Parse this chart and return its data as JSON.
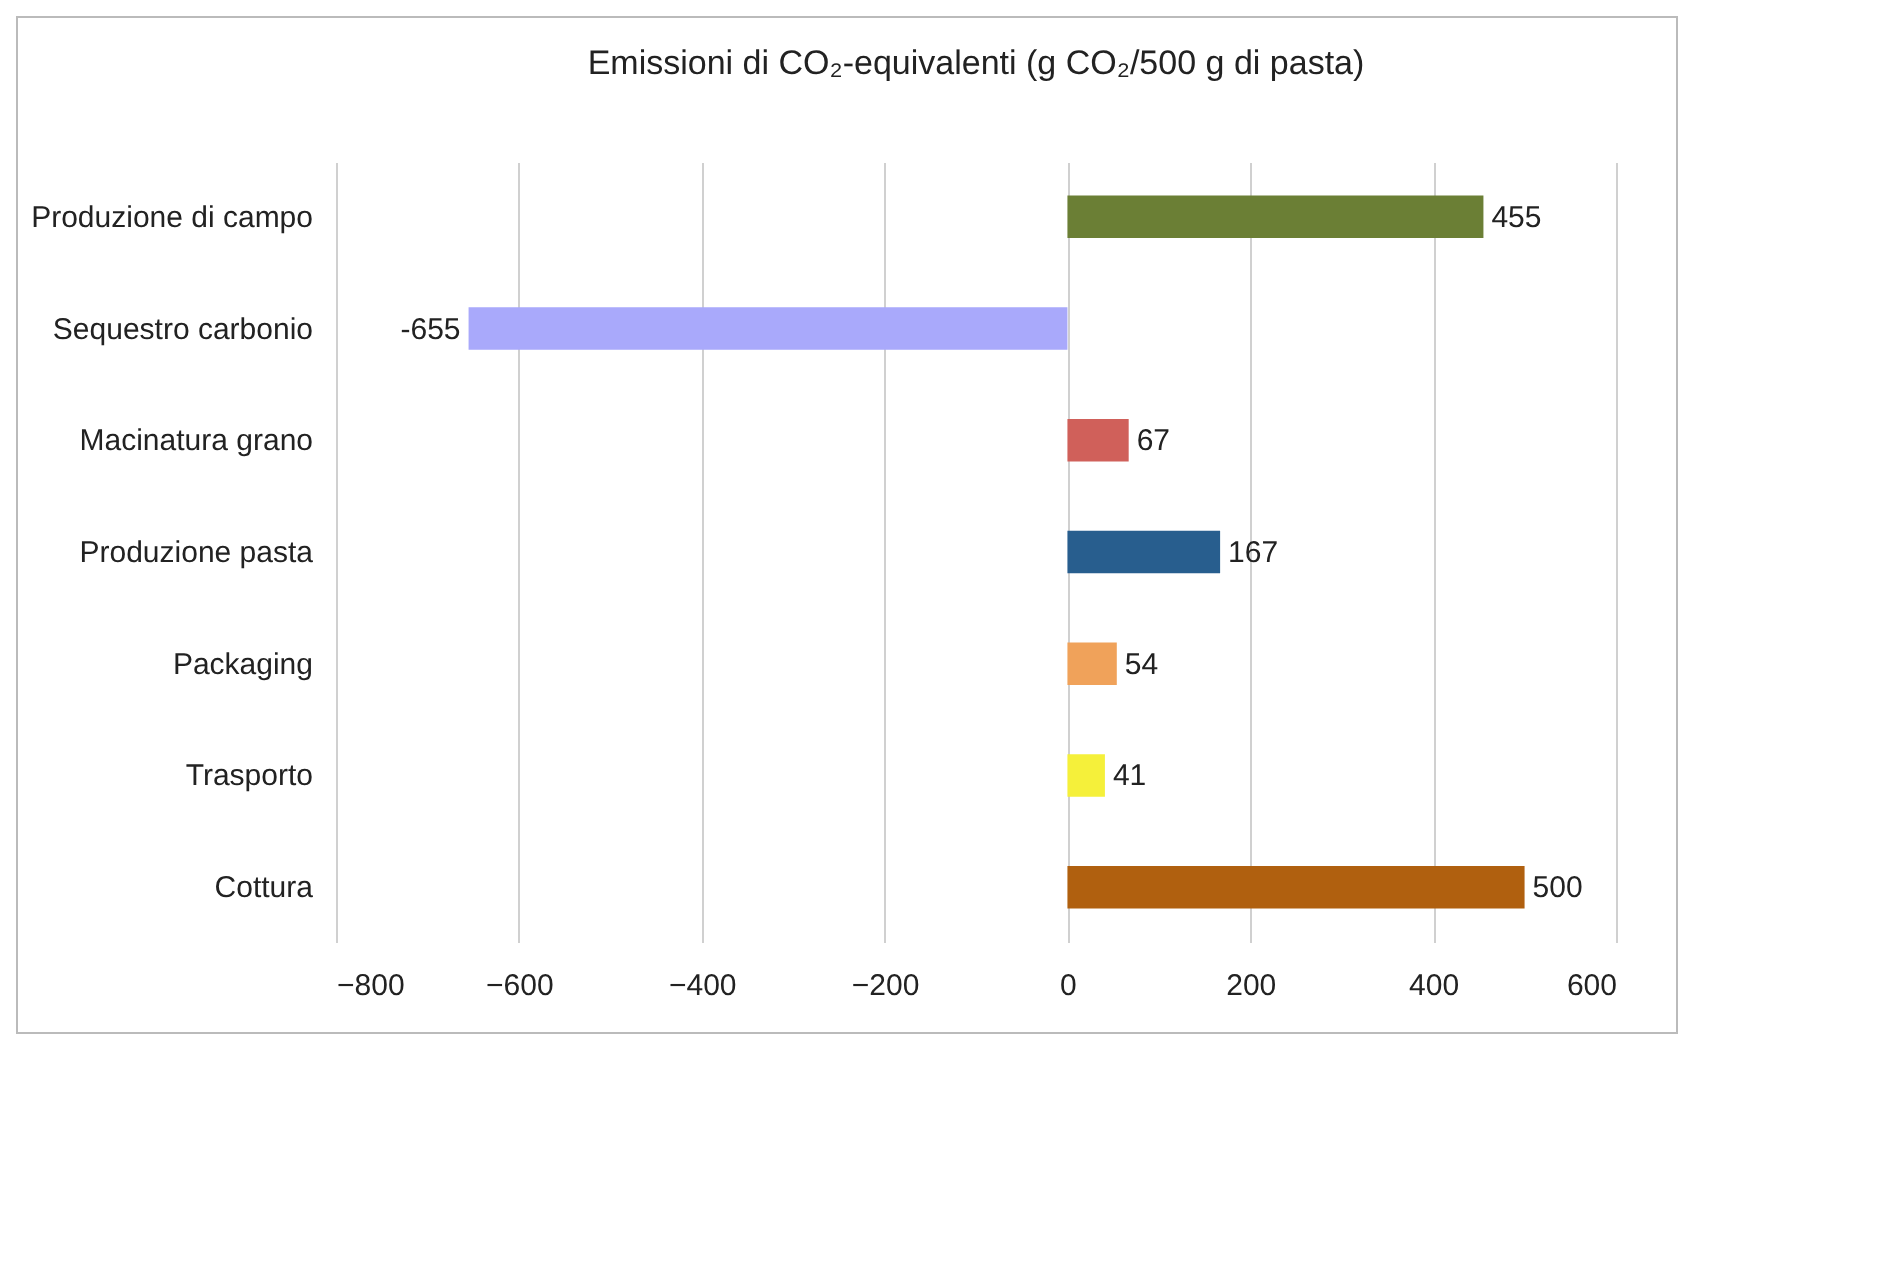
{
  "chart_data": {
    "type": "bar",
    "orientation": "horizontal",
    "title": "Emissioni di CO₂-equivalenti (g CO₂/500 g di pasta)",
    "categories": [
      "Produzione di campo",
      "Sequestro carbonio",
      "Macinatura grano",
      "Produzione pasta",
      "Packaging",
      "Trasporto",
      "Cottura"
    ],
    "values": [
      455,
      -655,
      67,
      167,
      54,
      41,
      500
    ],
    "colors": [
      "#6b7f35",
      "#a9a9fb",
      "#d0605a",
      "#285e8e",
      "#f0a25a",
      "#f5f03a",
      "#b0600f"
    ],
    "xlim": [
      -800,
      600
    ],
    "xticks": [
      -800,
      -600,
      -400,
      -200,
      0,
      200,
      400,
      600
    ],
    "grid": "x",
    "data_labels": true,
    "legend": false
  }
}
